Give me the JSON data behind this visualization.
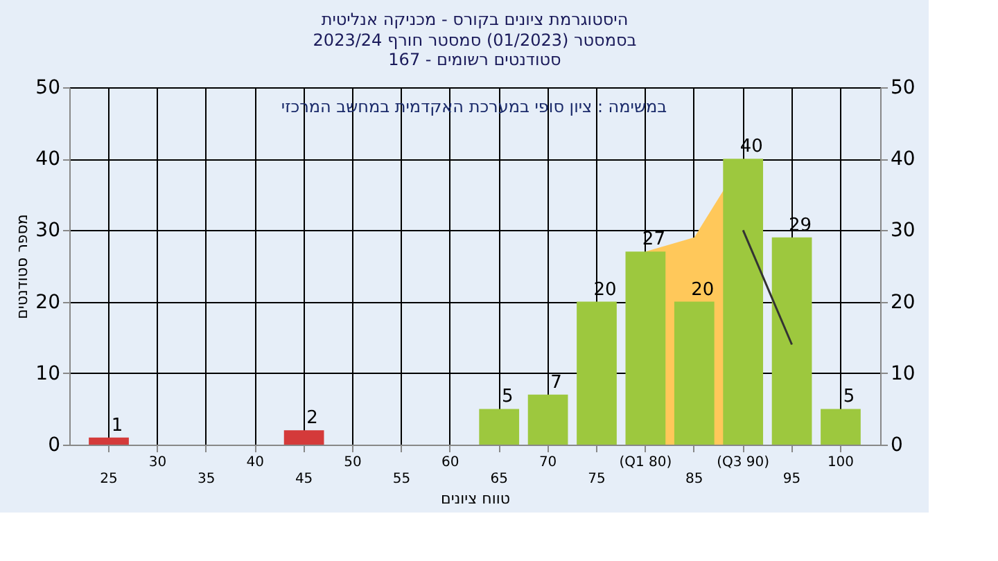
{
  "chart_data": {
    "type": "bar",
    "title": "היסטוגרמת ציונים בקורס - מכניקה אנליטית",
    "subtitle": "בסמסטר  (01/2023)  סמסטר חורף 2023/24\nסטודנטים רשומים - 167",
    "xlabel": "טווח ציונים",
    "ylabel": "מספר סטודנטים",
    "annotations": [
      "במשימה : ציון סופי במערכת האקדמית במחשב המרכזי"
    ],
    "categories": [
      "25",
      "30",
      "35",
      "40",
      "45",
      "50",
      "55",
      "60",
      "65",
      "70",
      "75",
      "(Q1 80)",
      "85",
      "(Q3 90)",
      "95",
      "100"
    ],
    "series": [
      {
        "type": "area",
        "color": "#ffc85a",
        "values": [
          null,
          null,
          null,
          null,
          null,
          null,
          null,
          null,
          null,
          null,
          null,
          27,
          29,
          40,
          null,
          null
        ]
      },
      {
        "type": "line",
        "color": "#333333",
        "values": [
          null,
          null,
          null,
          null,
          null,
          null,
          null,
          null,
          null,
          null,
          null,
          null,
          null,
          30,
          14,
          null
        ]
      },
      {
        "colors": [
          "#d43a3a",
          "#9dc83e",
          "#9dc83e",
          "#9dc83e",
          "#d43a3a",
          "#9dc83e",
          "#9dc83e",
          "#9dc83e",
          "#9dc83e",
          "#9dc83e",
          "#9dc83e",
          "#9dc83e",
          "#9dc83e",
          "#9dc83e",
          "#9dc83e",
          "#9dc83e"
        ],
        "values": [
          1,
          0,
          0,
          0,
          2,
          0,
          0,
          0,
          5,
          7,
          20,
          27,
          20,
          40,
          29,
          5
        ],
        "value_labels": [
          "1",
          null,
          null,
          null,
          "2",
          null,
          null,
          null,
          "5",
          "7",
          "20",
          "27",
          "20",
          "40",
          "29",
          "5"
        ]
      }
    ],
    "ylim": [
      0,
      50
    ],
    "yticks": [
      0,
      10,
      20,
      30,
      40,
      50
    ],
    "y2lim": [
      0,
      50
    ],
    "y2ticks": [
      0,
      10,
      20,
      30,
      40,
      50
    ],
    "grid": true
  }
}
